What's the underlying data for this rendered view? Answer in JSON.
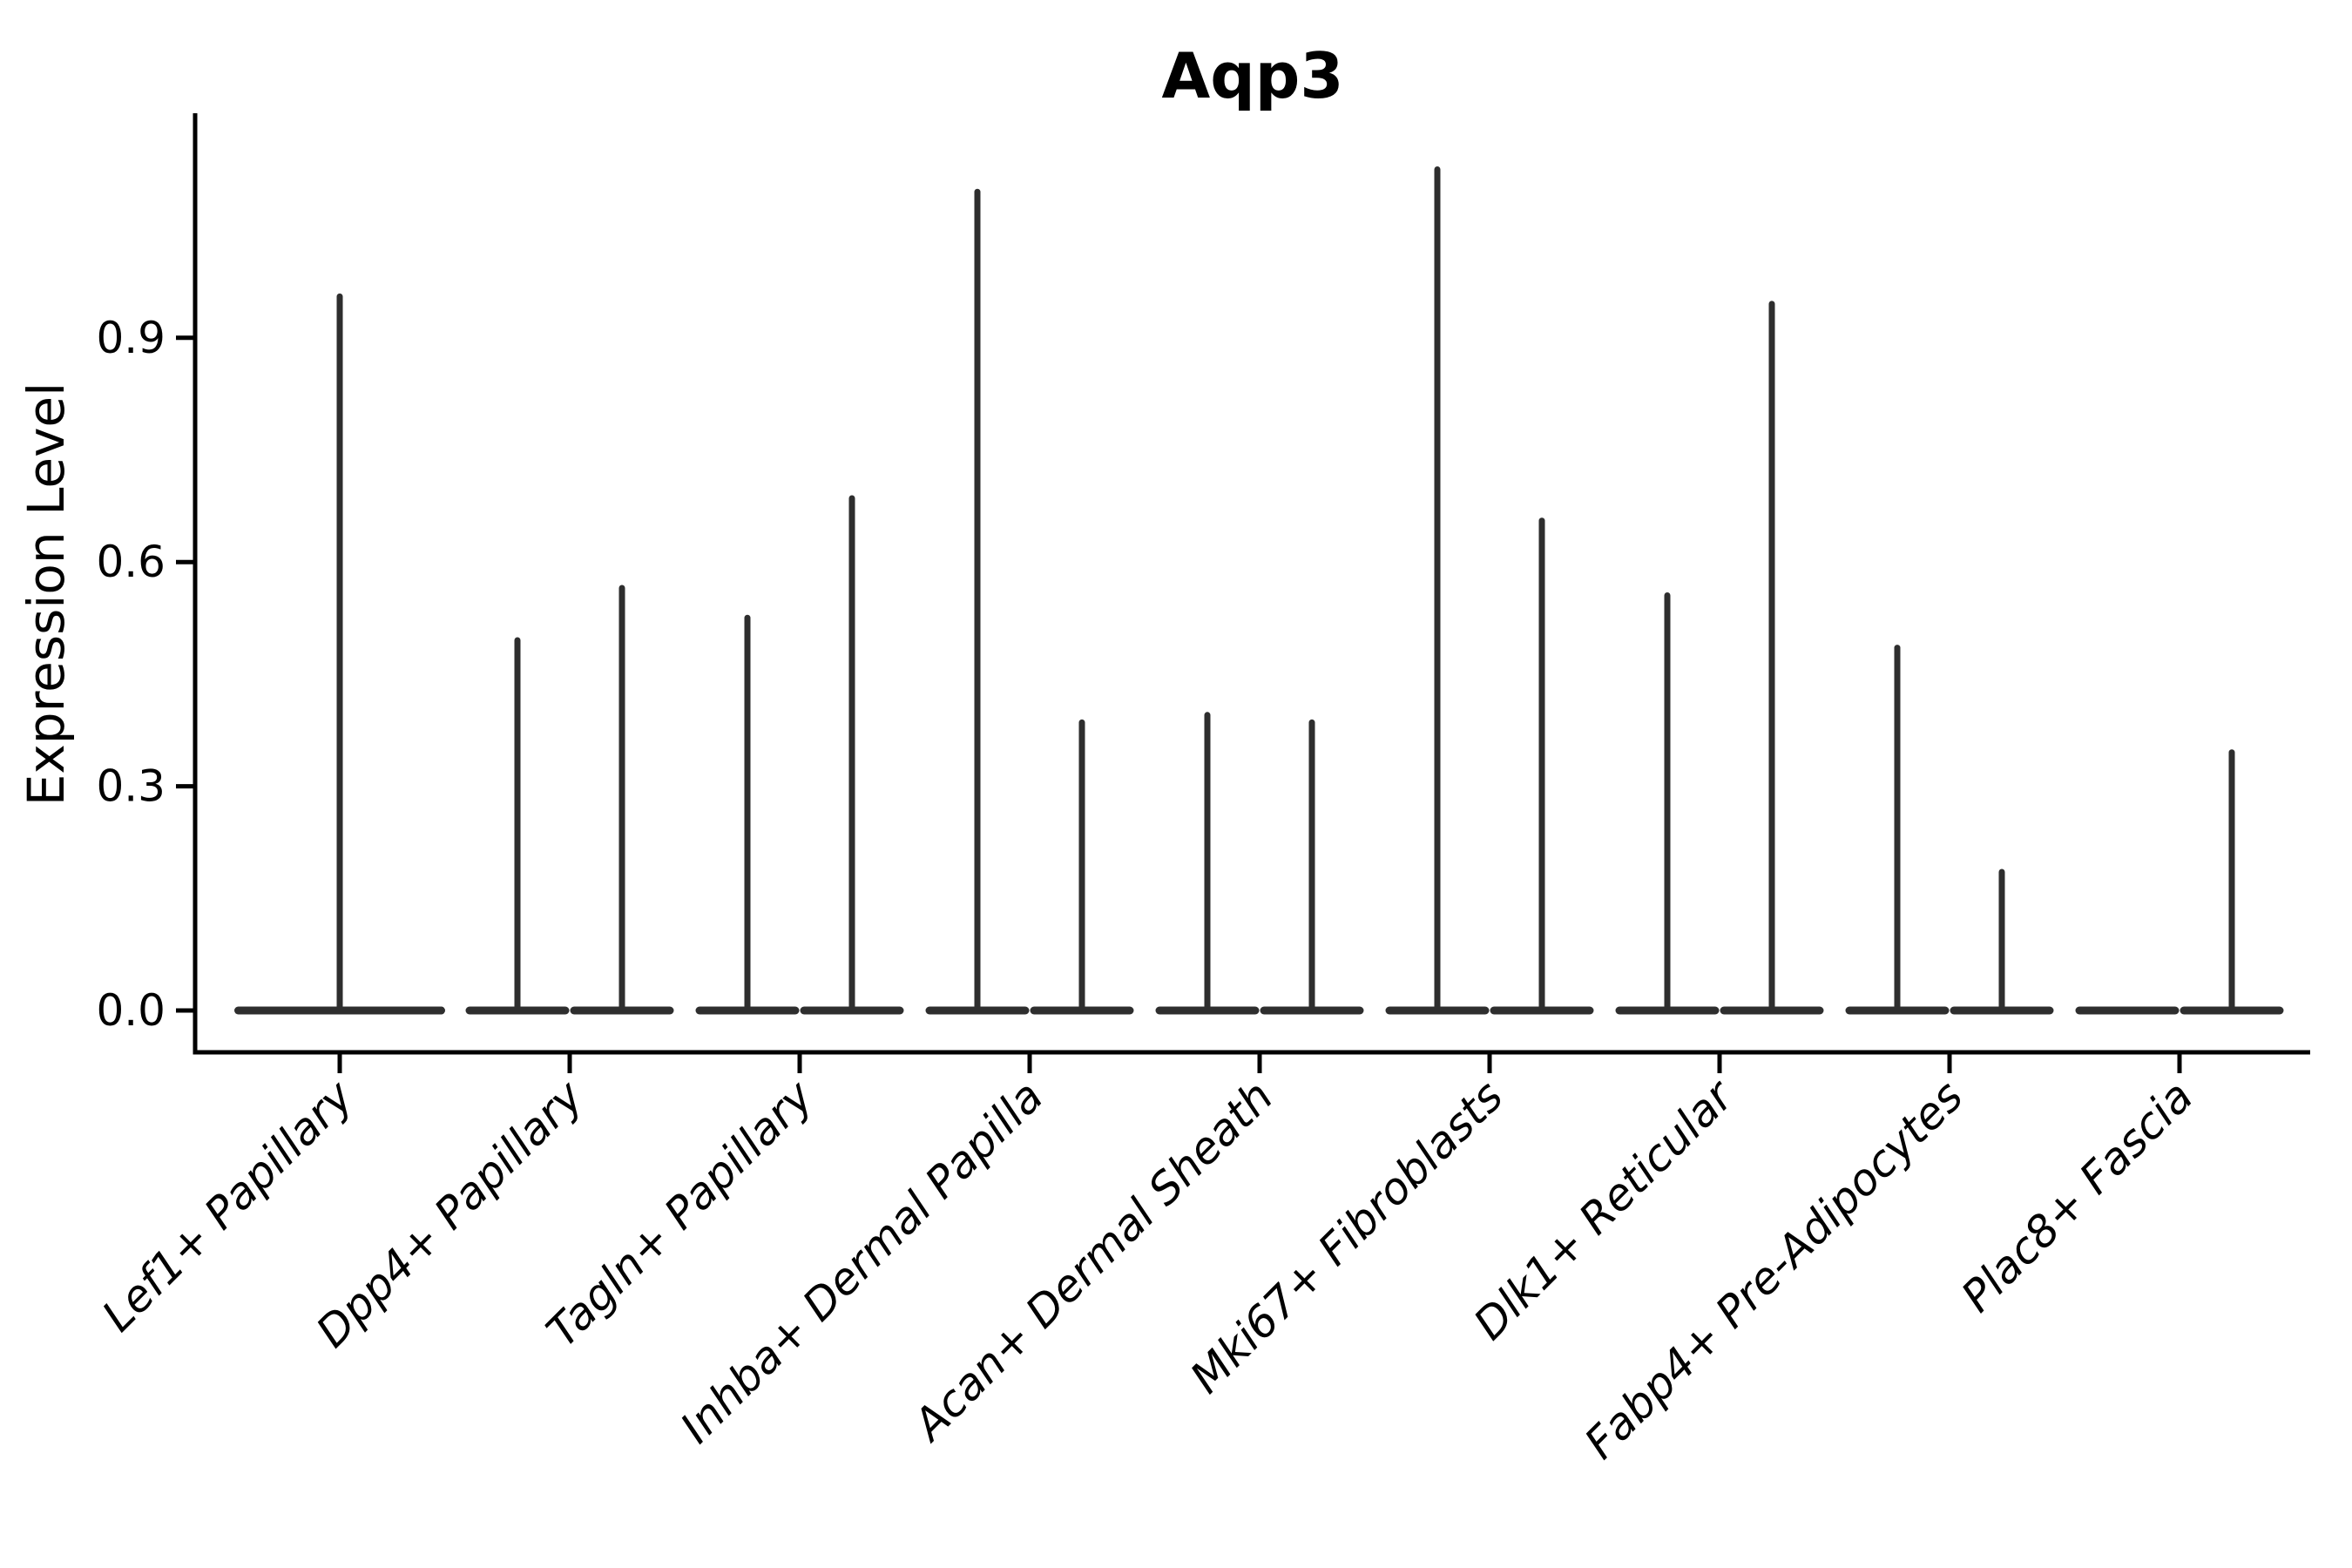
{
  "figure": {
    "background": "#ffffff"
  },
  "chart_data": {
    "type": "violin",
    "title": "Aqp3",
    "xlabel": "",
    "ylabel": "Expression Level",
    "yticks": [
      0.0,
      0.3,
      0.6,
      0.9
    ],
    "ylim": [
      -0.06,
      1.2
    ],
    "grid": false,
    "legend": null,
    "colors": {
      "violin": "#2e2e2e",
      "axis": "#000000",
      "text": "#000000"
    },
    "categories": [
      {
        "label": "Lef1+ Papillary",
        "violins": [
          {
            "span": "full",
            "peak": 0.96
          }
        ]
      },
      {
        "label": "Dpp4+ Papillary",
        "violins": [
          {
            "span": "left",
            "peak": 0.5
          },
          {
            "span": "right",
            "peak": 0.57
          }
        ]
      },
      {
        "label": "Tagln+ Papillary",
        "violins": [
          {
            "span": "left",
            "peak": 0.53
          },
          {
            "span": "right",
            "peak": 0.69
          }
        ]
      },
      {
        "label": "Inhba+ Dermal Papilla",
        "violins": [
          {
            "span": "left",
            "peak": 1.1
          },
          {
            "span": "right",
            "peak": 0.39
          }
        ]
      },
      {
        "label": "Acan+ Dermal Sheath",
        "violins": [
          {
            "span": "left",
            "peak": 0.4
          },
          {
            "span": "right",
            "peak": 0.39
          }
        ]
      },
      {
        "label": "Mki67+ Fibroblasts",
        "violins": [
          {
            "span": "left",
            "peak": 1.13
          },
          {
            "span": "right",
            "peak": 0.66
          }
        ]
      },
      {
        "label": "Dlk1+ Reticular",
        "violins": [
          {
            "span": "left",
            "peak": 0.56
          },
          {
            "span": "right",
            "peak": 0.95
          }
        ]
      },
      {
        "label": "Fabp4+ Pre-Adipocytes",
        "violins": [
          {
            "span": "left",
            "peak": 0.49
          },
          {
            "span": "right",
            "peak": 0.19
          }
        ]
      },
      {
        "label": "Plac8+ Fascia",
        "violins": [
          {
            "span": "left",
            "peak": 0.0
          },
          {
            "span": "right",
            "peak": 0.35
          }
        ]
      }
    ]
  }
}
